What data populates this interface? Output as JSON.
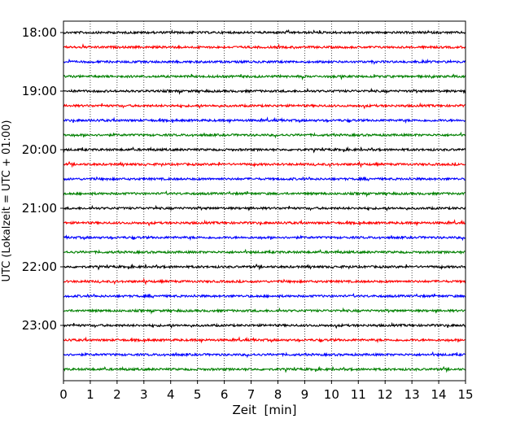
{
  "chart_data": {
    "type": "line",
    "title": "",
    "xlabel": "Zeit  [min]",
    "ylabel": "UTC (Lokalzeit = UTC + 01:00)",
    "xlim": [
      0,
      15
    ],
    "x_ticks": [
      0,
      1,
      2,
      3,
      4,
      5,
      6,
      7,
      8,
      9,
      10,
      11,
      12,
      13,
      14,
      15
    ],
    "y_tick_labels": [
      "18:00",
      "19:00",
      "20:00",
      "21:00",
      "22:00",
      "23:00"
    ],
    "grid": "vertical dotted lines at each minute",
    "trace_interval_min": 15,
    "start_time": "18:00",
    "traces": [
      {
        "time": "18:00",
        "color": "#000000"
      },
      {
        "time": "18:15",
        "color": "#ff0000"
      },
      {
        "time": "18:30",
        "color": "#0000ff"
      },
      {
        "time": "18:45",
        "color": "#008000"
      },
      {
        "time": "19:00",
        "color": "#000000"
      },
      {
        "time": "19:15",
        "color": "#ff0000"
      },
      {
        "time": "19:30",
        "color": "#0000ff"
      },
      {
        "time": "19:45",
        "color": "#008000"
      },
      {
        "time": "20:00",
        "color": "#000000"
      },
      {
        "time": "20:15",
        "color": "#ff0000"
      },
      {
        "time": "20:30",
        "color": "#0000ff"
      },
      {
        "time": "20:45",
        "color": "#008000"
      },
      {
        "time": "21:00",
        "color": "#000000"
      },
      {
        "time": "21:15",
        "color": "#ff0000"
      },
      {
        "time": "21:30",
        "color": "#0000ff"
      },
      {
        "time": "21:45",
        "color": "#008000"
      },
      {
        "time": "22:00",
        "color": "#000000"
      },
      {
        "time": "22:15",
        "color": "#ff0000"
      },
      {
        "time": "22:30",
        "color": "#0000ff"
      },
      {
        "time": "22:45",
        "color": "#008000"
      },
      {
        "time": "23:00",
        "color": "#000000"
      },
      {
        "time": "23:15",
        "color": "#ff0000"
      },
      {
        "time": "23:30",
        "color": "#0000ff"
      },
      {
        "time": "23:45",
        "color": "#008000"
      }
    ]
  }
}
